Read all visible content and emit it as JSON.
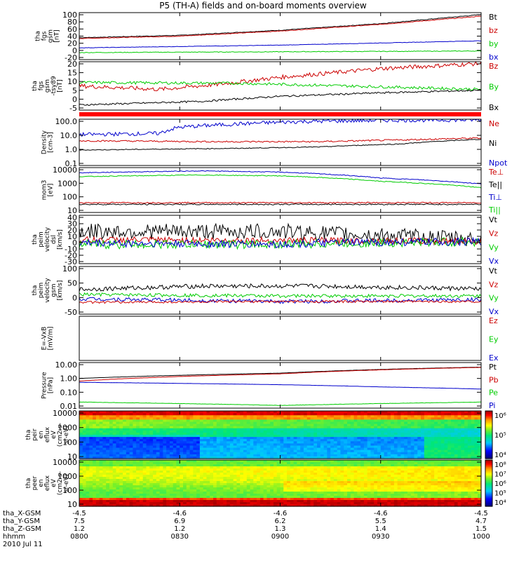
{
  "title": "P5 (TH-A) fields and on-board moments overview",
  "colors": {
    "black": "#000000",
    "red": "#cc0000",
    "green": "#00cc00",
    "blue": "#0000cc",
    "separator": "#ff0000"
  },
  "chart_data": [
    {
      "type": "line",
      "ylabel": [
        "tha",
        "fgs",
        "gsm",
        "[nT]"
      ],
      "yticks": [
        "100",
        "80",
        "60",
        "40",
        "20",
        "0",
        "-20"
      ],
      "ylim": [
        -20,
        100
      ],
      "scale": "linear",
      "legend": [
        {
          "text": "Bt",
          "color": "black"
        },
        {
          "text": "bz",
          "color": "red"
        },
        {
          "text": "by",
          "color": "green"
        },
        {
          "text": "bx",
          "color": "blue"
        }
      ],
      "series": [
        {
          "name": "Bt",
          "color": "black",
          "points": [
            [
              0,
              36
            ],
            [
              0.25,
              42
            ],
            [
              0.5,
              55
            ],
            [
              0.75,
              72
            ],
            [
              1,
              95
            ]
          ],
          "noise": 0.8
        },
        {
          "name": "bz",
          "color": "red",
          "points": [
            [
              0,
              34
            ],
            [
              0.25,
              40
            ],
            [
              0.5,
              53
            ],
            [
              0.75,
              70
            ],
            [
              1,
              91
            ]
          ],
          "noise": 0.8
        },
        {
          "name": "by",
          "color": "green",
          "points": [
            [
              0,
              -2
            ],
            [
              0.5,
              0
            ],
            [
              1,
              2
            ]
          ],
          "noise": 0.8
        },
        {
          "name": "bx",
          "color": "blue",
          "points": [
            [
              0,
              10
            ],
            [
              0.5,
              17
            ],
            [
              1,
              28
            ]
          ],
          "noise": 0.5
        }
      ]
    },
    {
      "type": "line",
      "ylabel": [
        "tha",
        "fgs",
        "gsm",
        "-tsy89",
        "[nT]"
      ],
      "yticks": [
        "20",
        "15",
        "10",
        "5",
        "0",
        "-5"
      ],
      "ylim": [
        -8,
        20
      ],
      "scale": "linear",
      "legend": [
        {
          "text": "Bz",
          "color": "red"
        },
        {
          "text": "By",
          "color": "green"
        },
        {
          "text": "Bx",
          "color": "black"
        }
      ],
      "series": [
        {
          "name": "Bz",
          "color": "red",
          "points": [
            [
              0,
              6
            ],
            [
              0.1,
              5
            ],
            [
              0.2,
              4
            ],
            [
              0.35,
              7
            ],
            [
              0.5,
              11
            ],
            [
              0.75,
              16
            ],
            [
              1,
              19
            ]
          ],
          "noise": 1.2
        },
        {
          "name": "By",
          "color": "green",
          "points": [
            [
              0,
              8
            ],
            [
              0.4,
              7.5
            ],
            [
              0.75,
              5.5
            ],
            [
              1,
              4
            ]
          ],
          "noise": 0.8
        },
        {
          "name": "Bx",
          "color": "black",
          "points": [
            [
              0,
              -5
            ],
            [
              0.3,
              -3
            ],
            [
              0.5,
              0
            ],
            [
              0.75,
              2
            ],
            [
              1,
              3.5
            ]
          ],
          "noise": 0.5
        }
      ]
    },
    {
      "type": "line",
      "ylabel": [
        "Density",
        "[cm-3]"
      ],
      "yticks": [
        "100.0",
        "10.0",
        "1.0",
        "0.1"
      ],
      "ylim": [
        0.1,
        100
      ],
      "scale": "log",
      "legend": [
        {
          "text": "Ne",
          "color": "red"
        },
        {
          "text": "Ni",
          "color": "black"
        },
        {
          "text": "Npot",
          "color": "blue"
        }
      ],
      "series": [
        {
          "name": "Npot",
          "color": "blue",
          "points": [
            [
              0,
              10
            ],
            [
              0.2,
              12
            ],
            [
              0.25,
              30
            ],
            [
              0.4,
              50
            ],
            [
              0.55,
              70
            ],
            [
              0.75,
              85
            ],
            [
              1,
              90
            ]
          ],
          "noise": 0.25,
          "log": true
        },
        {
          "name": "Ne",
          "color": "red",
          "points": [
            [
              0,
              4
            ],
            [
              0.35,
              3.5
            ],
            [
              0.6,
              3.5
            ],
            [
              0.8,
              4.5
            ],
            [
              1,
              6
            ]
          ],
          "noise": 0.1,
          "log": true
        },
        {
          "name": "Ni",
          "color": "black",
          "points": [
            [
              0,
              1
            ],
            [
              0.4,
              1.3
            ],
            [
              0.6,
              1.6
            ],
            [
              0.8,
              2.5
            ],
            [
              1,
              5
            ]
          ],
          "noise": 0.05,
          "log": true
        }
      ]
    },
    {
      "type": "line",
      "ylabel": [
        "mom3",
        "[eV]"
      ],
      "yticks": [
        "10000",
        "1000",
        "100",
        "10"
      ],
      "ylim": [
        10,
        10000
      ],
      "scale": "log",
      "legend": [
        {
          "text": "Te⊥",
          "color": "red"
        },
        {
          "text": "Te||",
          "color": "black"
        },
        {
          "text": "Ti⊥",
          "color": "blue"
        },
        {
          "text": "Ti||",
          "color": "green"
        }
      ],
      "series": [
        {
          "name": "Ti⊥",
          "color": "blue",
          "points": [
            [
              0,
              4500
            ],
            [
              0.3,
              6000
            ],
            [
              0.5,
              5000
            ],
            [
              0.75,
              2000
            ],
            [
              1,
              800
            ]
          ],
          "noise": 0.05,
          "log": true
        },
        {
          "name": "Ti||",
          "color": "green",
          "points": [
            [
              0,
              2500
            ],
            [
              0.3,
              3200
            ],
            [
              0.5,
              2800
            ],
            [
              0.75,
              1200
            ],
            [
              1,
              450
            ]
          ],
          "noise": 0.05,
          "log": true
        },
        {
          "name": "Te⊥",
          "color": "red",
          "points": [
            [
              0,
              45
            ],
            [
              0.5,
              45
            ],
            [
              1,
              45
            ]
          ],
          "noise": 0.08,
          "log": true
        },
        {
          "name": "Te||",
          "color": "black",
          "points": [
            [
              0,
              35
            ],
            [
              0.5,
              35
            ],
            [
              1,
              35
            ]
          ],
          "noise": 0.08,
          "log": true
        }
      ]
    },
    {
      "type": "line",
      "ylabel": [
        "tha",
        "peim",
        "velocity",
        "dsl",
        "[km/s]"
      ],
      "yticks": [
        "40",
        "30",
        "20",
        "10",
        "0",
        "-10",
        "-20",
        "-30"
      ],
      "ylim": [
        -35,
        40
      ],
      "scale": "linear",
      "legend": [
        {
          "text": "Vt",
          "color": "black"
        },
        {
          "text": "Vz",
          "color": "red"
        },
        {
          "text": "Vy",
          "color": "green"
        },
        {
          "text": "Vx",
          "color": "blue"
        }
      ],
      "series": [
        {
          "name": "Vt",
          "color": "black",
          "points": [
            [
              0,
              15
            ],
            [
              0.5,
              15
            ],
            [
              0.7,
              10
            ],
            [
              1,
              3
            ]
          ],
          "noise": 12
        },
        {
          "name": "Vz",
          "color": "red",
          "points": [
            [
              0,
              2
            ],
            [
              1,
              0
            ]
          ],
          "noise": 5
        },
        {
          "name": "Vy",
          "color": "green",
          "points": [
            [
              0,
              -5
            ],
            [
              0.5,
              -5
            ],
            [
              0.7,
              -3
            ],
            [
              1,
              -1
            ]
          ],
          "noise": 7
        },
        {
          "name": "Vx",
          "color": "blue",
          "points": [
            [
              0,
              -3
            ],
            [
              0.5,
              -5
            ],
            [
              0.7,
              -2
            ],
            [
              1,
              -1
            ]
          ],
          "noise": 6
        }
      ]
    },
    {
      "type": "line",
      "ylabel": [
        "tha",
        "peim",
        "velocity",
        "gsm",
        "[km/s]"
      ],
      "yticks": [
        "100",
        "50",
        "0",
        "-50"
      ],
      "ylim": [
        -60,
        110
      ],
      "scale": "linear",
      "legend": [
        {
          "text": "Vt",
          "color": "black"
        },
        {
          "text": "Vz",
          "color": "red"
        },
        {
          "text": "Vy",
          "color": "green"
        },
        {
          "text": "Vx",
          "color": "blue"
        }
      ],
      "series": [
        {
          "name": "Vt",
          "color": "black",
          "points": [
            [
              0,
              28
            ],
            [
              0.3,
              40
            ],
            [
              0.6,
              40
            ],
            [
              1,
              30
            ]
          ],
          "noise": 8
        },
        {
          "name": "Vy",
          "color": "green",
          "points": [
            [
              0,
              10
            ],
            [
              0.5,
              5
            ],
            [
              1,
              5
            ]
          ],
          "noise": 6
        },
        {
          "name": "Vx",
          "color": "blue",
          "points": [
            [
              0,
              -5
            ],
            [
              0.5,
              -15
            ],
            [
              1,
              -8
            ]
          ],
          "noise": 7
        },
        {
          "name": "Vz",
          "color": "red",
          "points": [
            [
              0,
              -18
            ],
            [
              0.5,
              -15
            ],
            [
              1,
              -15
            ]
          ],
          "noise": 4
        }
      ]
    },
    {
      "type": "line",
      "ylabel": [
        "E=-VxB",
        "[mV/m]"
      ],
      "yticks": [],
      "ylim": [
        0,
        1
      ],
      "scale": "linear",
      "legend": [
        {
          "text": "Ez",
          "color": "red"
        },
        {
          "text": "Ey",
          "color": "green"
        },
        {
          "text": "Ex",
          "color": "blue"
        }
      ],
      "series": []
    },
    {
      "type": "line",
      "ylabel": [
        "Pressure",
        "[nPa]"
      ],
      "yticks": [
        "10.00",
        "1.00",
        "0.10",
        "0.01"
      ],
      "ylim": [
        0.01,
        10
      ],
      "scale": "log",
      "legend": [
        {
          "text": "Pt",
          "color": "black"
        },
        {
          "text": "Pb",
          "color": "red"
        },
        {
          "text": "Pe",
          "color": "green"
        },
        {
          "text": "Pi",
          "color": "blue"
        }
      ],
      "series": [
        {
          "name": "Pt",
          "color": "black",
          "points": [
            [
              0,
              0.9
            ],
            [
              0.5,
              2
            ],
            [
              1,
              5
            ]
          ],
          "noise": 0.01,
          "log": true
        },
        {
          "name": "Pb",
          "color": "red",
          "points": [
            [
              0,
              0.6
            ],
            [
              0.5,
              1.8
            ],
            [
              1,
              4.8
            ]
          ],
          "noise": 0.01,
          "log": true
        },
        {
          "name": "Pi",
          "color": "blue",
          "points": [
            [
              0,
              0.5
            ],
            [
              0.5,
              0.35
            ],
            [
              0.75,
              0.25
            ],
            [
              1,
              0.18
            ]
          ],
          "noise": 0.01,
          "log": true
        },
        {
          "name": "Pe",
          "color": "green",
          "points": [
            [
              0,
              0.025
            ],
            [
              0.5,
              0.015
            ],
            [
              1,
              0.025
            ]
          ],
          "noise": 0.02,
          "log": true
        }
      ]
    },
    {
      "type": "heatmap",
      "ylabel": [
        "tha",
        "peir",
        "en",
        "eflux",
        "eV",
        "(cm2-s-",
        "sr-eV)"
      ],
      "yticks": [
        "10000",
        "1000",
        "100",
        "10"
      ],
      "ylim": [
        10,
        20000
      ],
      "scale": "log",
      "colorbar": {
        "ticks": [
          "10⁶",
          "10⁵",
          "10⁴"
        ]
      }
    },
    {
      "type": "heatmap",
      "ylabel": [
        "tha",
        "peer",
        "en",
        "eflux",
        "eV",
        "(cm2-s-",
        "sr-eV)"
      ],
      "yticks": [
        "10000",
        "1000",
        "100",
        "10"
      ],
      "ylim": [
        10,
        20000
      ],
      "scale": "log",
      "colorbar": {
        "ticks": [
          "10⁸",
          "10⁷",
          "10⁶",
          "10⁵",
          "10⁴"
        ]
      }
    }
  ],
  "xaxis": {
    "ticks": [
      {
        "x": "-4.5",
        "y": "7.5",
        "z": "1.2",
        "t": "0800"
      },
      {
        "x": "-4.6",
        "y": "6.9",
        "z": "1.2",
        "t": "0830"
      },
      {
        "x": "-4.6",
        "y": "6.2",
        "z": "1.3",
        "t": "0900"
      },
      {
        "x": "-4.6",
        "y": "5.5",
        "z": "1.4",
        "t": "0930"
      },
      {
        "x": "-4.5",
        "y": "4.7",
        "z": "1.5",
        "t": "1000"
      }
    ],
    "row_labels": [
      "tha_X-GSM",
      "tha_Y-GSM",
      "tha_Z-GSM",
      "hhmm"
    ],
    "date": "2010 Jul 11"
  }
}
